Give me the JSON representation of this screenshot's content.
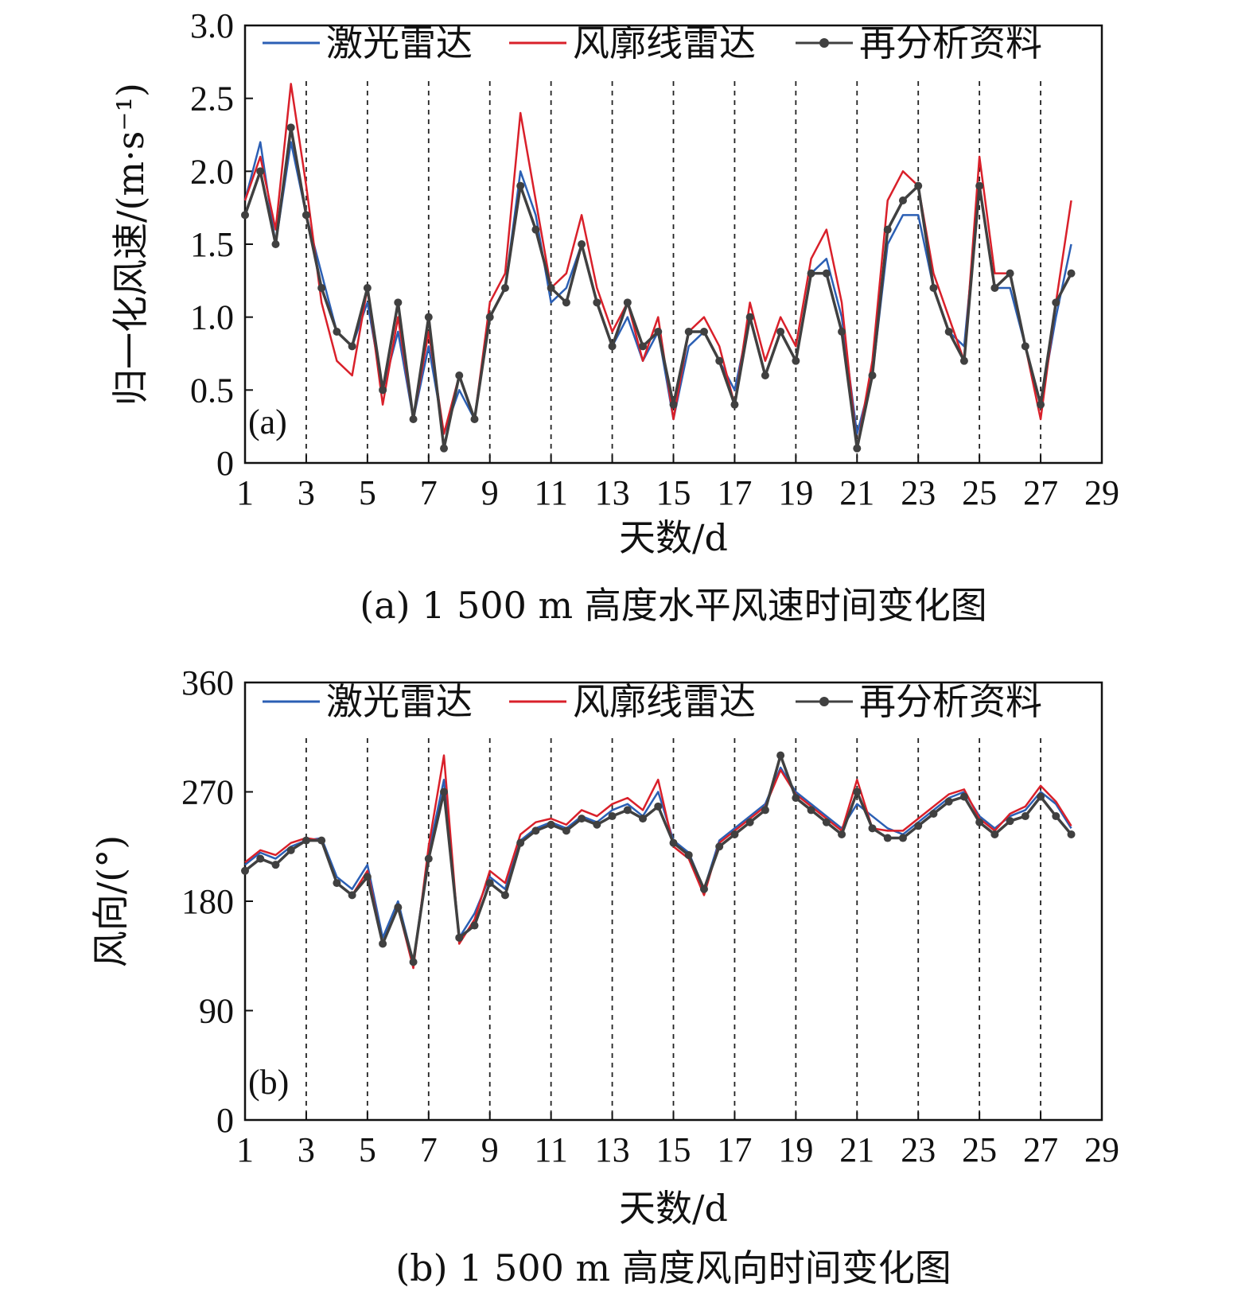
{
  "chart_data": [
    {
      "type": "line",
      "panel_label": "(a)",
      "caption": "(a) 1 500 m 高度水平风速时间变化图",
      "xlabel": "天数/d",
      "ylabel": "归一化风速/(m·s⁻¹)",
      "xlim": [
        1,
        29
      ],
      "ylim": [
        0,
        3.0
      ],
      "x_ticks": [
        "1",
        "3",
        "5",
        "7",
        "9",
        "11",
        "13",
        "15",
        "17",
        "19",
        "21",
        "23",
        "25",
        "27",
        "29"
      ],
      "y_ticks": [
        "0",
        "0.5",
        "1.0",
        "1.5",
        "2.0",
        "2.5",
        "3.0"
      ],
      "legend_position": "top",
      "series": [
        {
          "name": "激光雷达",
          "color": "#2b5fb4",
          "x": [
            1,
            1.5,
            2,
            2.5,
            3,
            3.5,
            4,
            4.5,
            5,
            5.5,
            6,
            6.5,
            7,
            7.5,
            8,
            8.5,
            9,
            9.5,
            10,
            10.5,
            11,
            11.5,
            12,
            12.5,
            13,
            13.5,
            14,
            14.5,
            15,
            15.5,
            16,
            16.5,
            17,
            17.5,
            18,
            18.5,
            19,
            19.5,
            20,
            20.5,
            21,
            21.5,
            22,
            22.5,
            23,
            23.5,
            24,
            24.5,
            25,
            25.5,
            26,
            26.5,
            27,
            27.5,
            28
          ],
          "values": [
            1.8,
            2.2,
            1.5,
            2.2,
            1.7,
            1.3,
            0.9,
            0.8,
            1.1,
            0.5,
            0.9,
            0.3,
            0.8,
            0.2,
            0.5,
            0.3,
            1.0,
            1.2,
            2.0,
            1.7,
            1.1,
            1.2,
            1.5,
            1.1,
            0.8,
            1.0,
            0.7,
            0.9,
            0.3,
            0.8,
            0.9,
            0.7,
            0.5,
            1.0,
            0.6,
            0.9,
            0.7,
            1.3,
            1.4,
            1.0,
            0.2,
            0.6,
            1.5,
            1.7,
            1.7,
            1.2,
            0.9,
            0.8,
            1.9,
            1.2,
            1.2,
            0.8,
            0.4,
            1.0,
            1.5
          ]
        },
        {
          "name": "风廓线雷达",
          "color": "#d9202a",
          "x": [
            1,
            1.5,
            2,
            2.5,
            3,
            3.5,
            4,
            4.5,
            5,
            5.5,
            6,
            6.5,
            7,
            7.5,
            8,
            8.5,
            9,
            9.5,
            10,
            10.5,
            11,
            11.5,
            12,
            12.5,
            13,
            13.5,
            14,
            14.5,
            15,
            15.5,
            16,
            16.5,
            17,
            17.5,
            18,
            18.5,
            19,
            19.5,
            20,
            20.5,
            21,
            21.5,
            22,
            22.5,
            23,
            23.5,
            24,
            24.5,
            25,
            25.5,
            26,
            26.5,
            27,
            27.5,
            28
          ],
          "values": [
            1.8,
            2.1,
            1.6,
            2.6,
            1.9,
            1.1,
            0.7,
            0.6,
            1.2,
            0.4,
            1.0,
            0.3,
            0.9,
            0.2,
            0.6,
            0.3,
            1.1,
            1.3,
            2.4,
            1.8,
            1.2,
            1.3,
            1.7,
            1.2,
            0.9,
            1.1,
            0.7,
            1.0,
            0.3,
            0.9,
            1.0,
            0.8,
            0.4,
            1.1,
            0.7,
            1.0,
            0.8,
            1.4,
            1.6,
            1.1,
            0.1,
            0.7,
            1.8,
            2.0,
            1.9,
            1.3,
            1.0,
            0.7,
            2.1,
            1.3,
            1.3,
            0.8,
            0.3,
            1.1,
            1.8
          ]
        },
        {
          "name": "再分析资料",
          "color": "#404040",
          "x": [
            1,
            1.5,
            2,
            2.5,
            3,
            3.5,
            4,
            4.5,
            5,
            5.5,
            6,
            6.5,
            7,
            7.5,
            8,
            8.5,
            9,
            9.5,
            10,
            10.5,
            11,
            11.5,
            12,
            12.5,
            13,
            13.5,
            14,
            14.5,
            15,
            15.5,
            16,
            16.5,
            17,
            17.5,
            18,
            18.5,
            19,
            19.5,
            20,
            20.5,
            21,
            21.5,
            22,
            22.5,
            23,
            23.5,
            24,
            24.5,
            25,
            25.5,
            26,
            26.5,
            27,
            27.5,
            28
          ],
          "values": [
            1.7,
            2.0,
            1.5,
            2.3,
            1.7,
            1.2,
            0.9,
            0.8,
            1.2,
            0.5,
            1.1,
            0.3,
            1.0,
            0.1,
            0.6,
            0.3,
            1.0,
            1.2,
            1.9,
            1.6,
            1.2,
            1.1,
            1.5,
            1.1,
            0.8,
            1.1,
            0.8,
            0.9,
            0.4,
            0.9,
            0.9,
            0.7,
            0.4,
            1.0,
            0.6,
            0.9,
            0.7,
            1.3,
            1.3,
            0.9,
            0.1,
            0.6,
            1.6,
            1.8,
            1.9,
            1.2,
            0.9,
            0.7,
            1.9,
            1.2,
            1.3,
            0.8,
            0.4,
            1.1,
            1.3
          ]
        }
      ]
    },
    {
      "type": "line",
      "panel_label": "(b)",
      "caption": "(b) 1 500 m 高度风向时间变化图",
      "xlabel": "天数/d",
      "ylabel": "风向/(°)",
      "xlim": [
        1,
        29
      ],
      "ylim": [
        0,
        360
      ],
      "x_ticks": [
        "1",
        "3",
        "5",
        "7",
        "9",
        "11",
        "13",
        "15",
        "17",
        "19",
        "21",
        "23",
        "25",
        "27",
        "29"
      ],
      "y_ticks": [
        "0",
        "90",
        "180",
        "270",
        "360"
      ],
      "legend_position": "top",
      "series": [
        {
          "name": "激光雷达",
          "color": "#2b5fb4",
          "x": [
            1,
            1.5,
            2,
            2.5,
            3,
            3.5,
            4,
            4.5,
            5,
            5.5,
            6,
            6.5,
            7,
            7.5,
            8,
            8.5,
            9,
            9.5,
            10,
            10.5,
            11,
            11.5,
            12,
            12.5,
            13,
            13.5,
            14,
            14.5,
            15,
            15.5,
            16,
            16.5,
            17,
            17.5,
            18,
            18.5,
            19,
            19.5,
            20,
            20.5,
            21,
            21.5,
            22,
            22.5,
            23,
            23.5,
            24,
            24.5,
            25,
            25.5,
            26,
            26.5,
            27,
            27.5,
            28
          ],
          "values": [
            210,
            220,
            215,
            225,
            230,
            232,
            200,
            190,
            210,
            150,
            180,
            130,
            220,
            280,
            150,
            170,
            200,
            190,
            230,
            240,
            245,
            240,
            250,
            245,
            255,
            260,
            250,
            270,
            230,
            220,
            190,
            230,
            240,
            250,
            260,
            290,
            270,
            260,
            250,
            240,
            260,
            250,
            240,
            235,
            245,
            255,
            265,
            270,
            250,
            240,
            250,
            255,
            270,
            260,
            240
          ]
        },
        {
          "name": "风廓线雷达",
          "color": "#d9202a",
          "x": [
            1,
            1.5,
            2,
            2.5,
            3,
            3.5,
            4,
            4.5,
            5,
            5.5,
            6,
            6.5,
            7,
            7.5,
            8,
            8.5,
            9,
            9.5,
            10,
            10.5,
            11,
            11.5,
            12,
            12.5,
            13,
            13.5,
            14,
            14.5,
            15,
            15.5,
            16,
            16.5,
            17,
            17.5,
            18,
            18.5,
            19,
            19.5,
            20,
            20.5,
            21,
            21.5,
            22,
            22.5,
            23,
            23.5,
            24,
            24.5,
            25,
            25.5,
            26,
            26.5,
            27,
            27.5,
            28
          ],
          "values": [
            212,
            222,
            218,
            228,
            232,
            230,
            195,
            185,
            205,
            145,
            175,
            125,
            225,
            300,
            145,
            165,
            205,
            195,
            235,
            245,
            248,
            243,
            255,
            250,
            260,
            265,
            255,
            280,
            225,
            215,
            185,
            228,
            238,
            248,
            258,
            288,
            268,
            258,
            248,
            238,
            280,
            240,
            238,
            238,
            248,
            258,
            268,
            272,
            248,
            238,
            252,
            258,
            275,
            262,
            242
          ]
        },
        {
          "name": "再分析资料",
          "color": "#404040",
          "x": [
            1,
            1.5,
            2,
            2.5,
            3,
            3.5,
            4,
            4.5,
            5,
            5.5,
            6,
            6.5,
            7,
            7.5,
            8,
            8.5,
            9,
            9.5,
            10,
            10.5,
            11,
            11.5,
            12,
            12.5,
            13,
            13.5,
            14,
            14.5,
            15,
            15.5,
            16,
            16.5,
            17,
            17.5,
            18,
            18.5,
            19,
            19.5,
            20,
            20.5,
            21,
            21.5,
            22,
            22.5,
            23,
            23.5,
            24,
            24.5,
            25,
            25.5,
            26,
            26.5,
            27,
            27.5,
            28
          ],
          "values": [
            205,
            215,
            210,
            222,
            230,
            230,
            195,
            185,
            200,
            145,
            175,
            130,
            215,
            270,
            150,
            160,
            195,
            185,
            228,
            238,
            243,
            238,
            248,
            243,
            250,
            255,
            248,
            258,
            228,
            218,
            190,
            225,
            235,
            245,
            255,
            300,
            265,
            255,
            245,
            235,
            270,
            240,
            232,
            232,
            242,
            252,
            262,
            266,
            245,
            235,
            246,
            250,
            266,
            250,
            235
          ]
        }
      ]
    }
  ]
}
